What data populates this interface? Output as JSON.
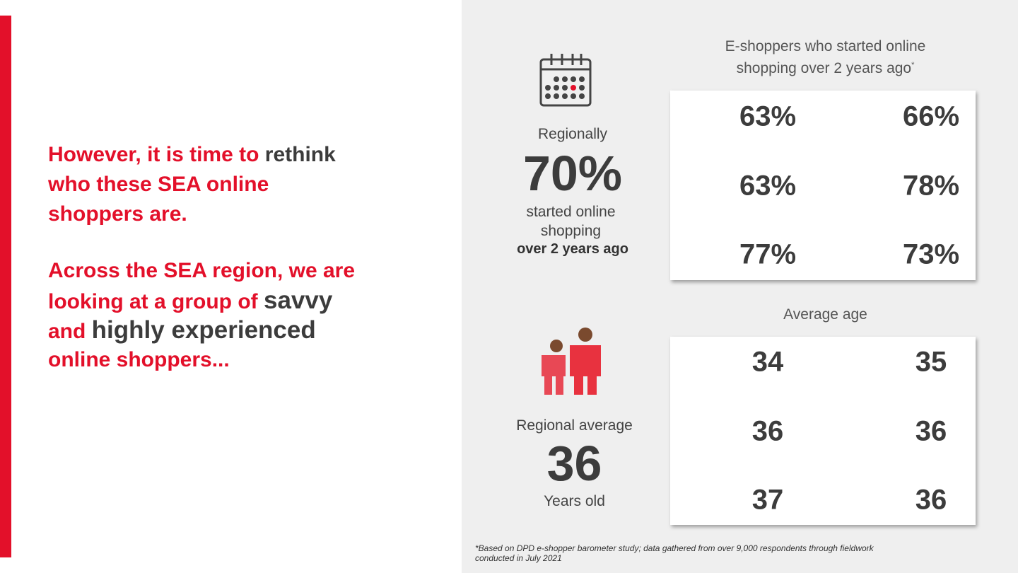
{
  "headline": {
    "paragraphs": [
      {
        "lines": [
          [
            {
              "text": "However, it is time to ",
              "color": "#e3102a"
            },
            {
              "text": "rethink",
              "color": "#3c3c3c"
            }
          ],
          [
            {
              "text": "who these SEA online",
              "color": "#e3102a"
            }
          ],
          [
            {
              "text": "shoppers are.",
              "color": "#e3102a"
            }
          ]
        ]
      },
      {
        "lines": [
          [
            {
              "text": "Across the SEA region, we are",
              "color": "#e3102a"
            }
          ],
          [
            {
              "text": "looking at a group of ",
              "color": "#e3102a"
            },
            {
              "text": "savvy",
              "color": "#3c3c3c",
              "emphasis": true
            }
          ],
          [
            {
              "text": "and ",
              "color": "#e3102a"
            },
            {
              "text": "highly experienced",
              "color": "#3c3c3c",
              "emphasis": true
            }
          ],
          [
            {
              "text": "online shoppers...",
              "color": "#e3102a"
            }
          ]
        ]
      }
    ]
  },
  "online_experience": {
    "label_top": "Regionally",
    "value": "70%",
    "label_middle": "started online shopping",
    "label_bottom": "over 2 years ago",
    "table_title": "E-shoppers who started online shopping over 2 years ago",
    "table_title_mark": "*",
    "values": [
      "63%",
      "66%",
      "63%",
      "78%",
      "77%",
      "73%"
    ]
  },
  "average_age": {
    "label_top": "Regional average",
    "value": "36",
    "label_bottom": "Years old",
    "table_title": "Average age",
    "values": [
      34,
      35,
      36,
      36,
      37,
      36
    ]
  },
  "footnote": "*Based on DPD e-shopper barometer study; data gathered from over 9,000 respondents through fieldwork conducted in July 2021"
}
